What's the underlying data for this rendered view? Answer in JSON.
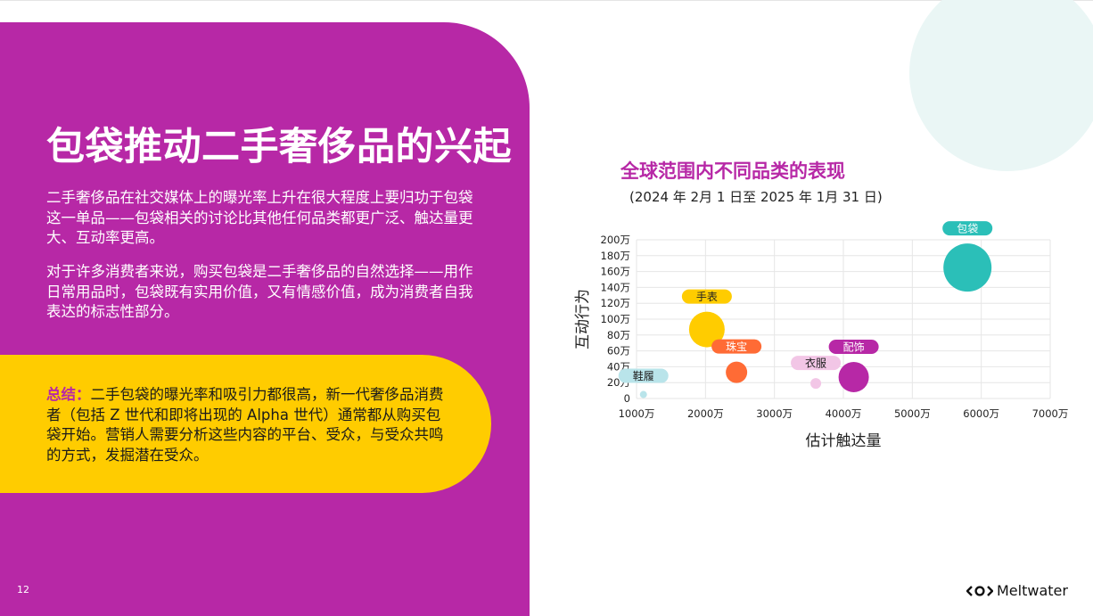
{
  "slide": {
    "title": "包袋推动二手奢侈品的兴起",
    "paragraphs": [
      "二手奢侈品在社交媒体上的曝光率上升在很大程度上要归功于包袋这一单品——包袋相关的讨论比其他任何品类都更广泛、触达量更大、互动率更高。",
      "对于许多消费者来说，购买包袋是二手奢侈品的自然选择——用作日常用品时，包袋既有实用价值，又有情感价值，成为消费者自我表达的标志性部分。"
    ],
    "summary_label": "总结：",
    "summary_text": "二手包袋的曝光率和吸引力都很高，新一代奢侈品消费者（包括 Z 世代和即将出现的 Alpha 世代）通常都从购买包袋开始。营销人需要分析这些内容的平台、受众，与受众共鸣的方式，发掘潜在受众。",
    "page_number": "12",
    "brand_name": "Meltwater",
    "brand_icon": "meltwater-logo-icon"
  },
  "colors": {
    "panel": "#b728a6",
    "summary": "#ffcc00",
    "deco": "#eaf6f5"
  },
  "chart_data": {
    "type": "scatter",
    "title": "全球范围内不同品类的表现",
    "subtitle": "(2024 年 2月 1 日至 2025 年 1月 31 日)",
    "xlabel": "估计触达量",
    "ylabel": "互动行为",
    "xlim": [
      1000,
      7000
    ],
    "ylim": [
      0,
      200
    ],
    "x_unit": "万",
    "y_unit": "万",
    "x_ticks": [
      "1000万",
      "2000万",
      "3000万",
      "4000万",
      "5000万",
      "6000万",
      "7000万"
    ],
    "y_ticks": [
      "0",
      "20万",
      "40万",
      "60万",
      "80万",
      "100万",
      "120万",
      "140万",
      "160万",
      "180万",
      "200万"
    ],
    "grid": true,
    "points": [
      {
        "name": "鞋履",
        "x": 1100,
        "y": 5,
        "size": 4,
        "color": "#b9e4ea",
        "label_color": "#222222"
      },
      {
        "name": "手表",
        "x": 2020,
        "y": 87,
        "size": 20,
        "color": "#ffcc00",
        "label_color": "#222222"
      },
      {
        "name": "珠宝",
        "x": 2450,
        "y": 33,
        "size": 12,
        "color": "#ff6b35",
        "label_color": "#ffffff"
      },
      {
        "name": "衣服",
        "x": 3600,
        "y": 19,
        "size": 6,
        "color": "#f2c6e6",
        "label_color": "#222222"
      },
      {
        "name": "配饰",
        "x": 4150,
        "y": 27,
        "size": 17,
        "color": "#b728a6",
        "label_color": "#ffffff"
      },
      {
        "name": "包袋",
        "x": 5800,
        "y": 165,
        "size": 27,
        "color": "#2bbfb8",
        "label_color": "#ffffff"
      }
    ]
  }
}
